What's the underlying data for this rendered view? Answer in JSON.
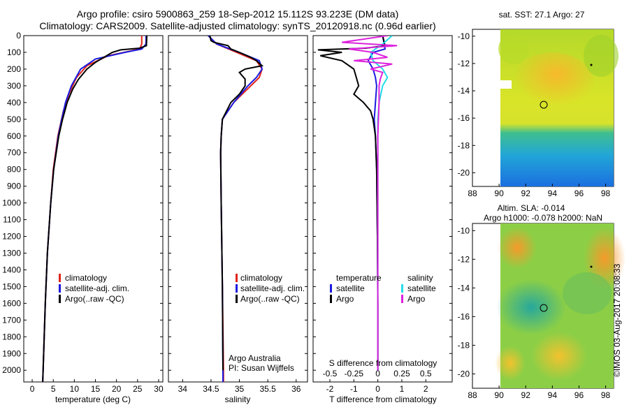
{
  "header": {
    "title_line1": "Argo profile: csiro 5900863_259 18-Sep-2012 15.112S 93.223E (DM data)",
    "title_line2": "Climatology: CARS2009. Satellite-adjusted climatology: synTS_20120918.nc (0.96d earlier)"
  },
  "colors": {
    "climatology": "#e0241b",
    "satellite": "#1a1adf",
    "argo": "#000000",
    "salinity_sat": "#22dde8",
    "salinity_argo": "#dd22dd"
  },
  "chart_data": [
    {
      "type": "line",
      "name": "temperature-profile",
      "xlabel": "temperature (deg C)",
      "xlim": [
        -2,
        31
      ],
      "ylim": [
        2070,
        0
      ],
      "xticks": [
        0,
        5,
        10,
        15,
        20,
        25,
        30
      ],
      "yticks": [
        0,
        100,
        200,
        300,
        400,
        500,
        600,
        700,
        800,
        900,
        1000,
        1100,
        1200,
        1300,
        1400,
        1500,
        1600,
        1700,
        1800,
        1900,
        2000
      ],
      "legend": [
        "climatology",
        "satellite-adj. clim.",
        "Argo(..raw -QC)"
      ],
      "series": [
        {
          "name": "climatology",
          "depth": [
            0,
            50,
            80,
            120,
            180,
            250,
            350,
            450,
            600,
            800,
            1000,
            1300,
            1600,
            2000,
            2070
          ],
          "values": [
            26,
            26,
            25.5,
            18,
            13,
            10.5,
            8.7,
            7.4,
            6.1,
            5.0,
            4.4,
            3.6,
            3.1,
            2.6,
            2.5
          ]
        },
        {
          "name": "satellite-adj. clim.",
          "depth": [
            0,
            50,
            80,
            100,
            140,
            200,
            300,
            400,
            500,
            600,
            800,
            1000,
            1300,
            1600,
            2000,
            2070
          ],
          "values": [
            27,
            27,
            26,
            22,
            15,
            11.5,
            9.3,
            7.9,
            7.0,
            6.2,
            5.1,
            4.4,
            3.6,
            3.1,
            2.6,
            2.5
          ]
        },
        {
          "name": "Argo",
          "depth": [
            0,
            60,
            75,
            85,
            100,
            130,
            160,
            200,
            260,
            320,
            400,
            500,
            600,
            800,
            1000,
            1300,
            1600,
            2000,
            2070
          ],
          "values": [
            27.2,
            27.1,
            25.5,
            21,
            19,
            17,
            15,
            13,
            11,
            9.6,
            8.3,
            7.2,
            6.3,
            5.1,
            4.4,
            3.6,
            3.1,
            2.6,
            2.5
          ]
        }
      ]
    },
    {
      "type": "line",
      "name": "salinity-profile",
      "xlabel": "salinity",
      "xlim": [
        33.75,
        36.2
      ],
      "ylim": [
        2070,
        0
      ],
      "xticks": [
        34,
        34.5,
        35,
        35.5,
        36
      ],
      "legend": [
        "climatology",
        "satellite-adj. clim.",
        "Argo(..raw -QC)"
      ],
      "annotation": [
        "Argo Australia",
        "PI: Susan Wijffels"
      ],
      "series": [
        {
          "name": "climatology",
          "depth": [
            0,
            50,
            100,
            150,
            200,
            250,
            300,
            400,
            500,
            600,
            700,
            1000,
            1500,
            2000,
            2070
          ],
          "values": [
            34.45,
            34.6,
            34.95,
            35.3,
            35.4,
            35.35,
            35.2,
            34.9,
            34.7,
            34.68,
            34.67,
            34.68,
            34.7,
            34.72,
            34.72
          ]
        },
        {
          "name": "satellite-adj. clim.",
          "depth": [
            0,
            50,
            100,
            150,
            200,
            250,
            300,
            400,
            500,
            600,
            700,
            1000,
            1500,
            2000,
            2070
          ],
          "values": [
            34.45,
            34.6,
            35.0,
            35.35,
            35.4,
            35.3,
            35.15,
            34.9,
            34.7,
            34.68,
            34.67,
            34.68,
            34.7,
            34.71,
            34.71
          ]
        },
        {
          "name": "Argo",
          "depth": [
            0,
            30,
            40,
            60,
            80,
            100,
            130,
            150,
            180,
            200,
            220,
            240,
            260,
            300,
            350,
            400,
            500,
            600,
            700,
            1000,
            1500,
            2000
          ],
          "values": [
            34.48,
            34.5,
            34.55,
            34.8,
            34.85,
            35.0,
            35.2,
            35.3,
            35.4,
            35.1,
            35.0,
            35.05,
            35.1,
            35.1,
            35.0,
            34.85,
            34.7,
            34.68,
            34.67,
            34.68,
            34.7,
            34.71
          ]
        }
      ]
    },
    {
      "type": "line",
      "name": "difference-profile",
      "xlabel": "T difference from climatology",
      "top_label": "S difference from climatology",
      "xlim": [
        -2.7,
        3.1
      ],
      "ylim": [
        2070,
        0
      ],
      "xticks": [
        -2,
        -1,
        0,
        1,
        2
      ],
      "s_ticks": [
        "-0.5",
        "-0.25",
        "0",
        "0.25",
        "0.5"
      ],
      "s_ticks_pos": [
        -2,
        -1,
        0,
        1,
        2
      ],
      "legend_temperature": "temperature",
      "legend_salinity": "salinity",
      "legend_items": [
        "satellite",
        "Argo",
        "satellite",
        "Argo"
      ],
      "series": [
        {
          "name": "T satellite",
          "depth": [
            0,
            80,
            100,
            150,
            200,
            250,
            300,
            400,
            500,
            600,
            800,
            1200,
            1600,
            2000
          ],
          "values": [
            0.2,
            0.3,
            -0.2,
            -0.4,
            -0.2,
            -0.1,
            -0.05,
            -0.1,
            -0.15,
            -0.1,
            -0.05,
            -0.02,
            0,
            0
          ]
        },
        {
          "name": "T Argo",
          "depth": [
            0,
            60,
            75,
            85,
            100,
            120,
            150,
            200,
            250,
            300,
            350,
            400,
            450,
            500,
            600,
            800,
            1200,
            1600,
            2000
          ],
          "values": [
            0.2,
            0.3,
            -0.5,
            -2.5,
            -1.5,
            -2.4,
            -1.5,
            -1.0,
            -0.9,
            -0.8,
            -1.0,
            -0.6,
            -0.3,
            -0.2,
            -0.1,
            -0.05,
            -0.02,
            0,
            0
          ]
        },
        {
          "name": "S satellite",
          "depth": [
            0,
            50,
            100,
            150,
            200,
            250,
            300,
            400,
            500,
            700,
            1000,
            1500,
            2000
          ],
          "values": [
            0.6,
            0.2,
            -0.3,
            -0.2,
            0.2,
            0.4,
            0.2,
            0.05,
            0,
            0,
            0,
            0,
            0
          ]
        },
        {
          "name": "S Argo",
          "depth": [
            0,
            40,
            60,
            80,
            100,
            130,
            150,
            170,
            200,
            220,
            260,
            300,
            400,
            600,
            1000,
            1500,
            2000
          ],
          "values": [
            0.4,
            -1.5,
            0.8,
            -1.2,
            -0.2,
            0.4,
            -1.0,
            0.6,
            -0.3,
            0.2,
            0.1,
            0.05,
            0.05,
            0,
            0,
            0,
            0
          ]
        }
      ]
    },
    {
      "type": "heatmap",
      "name": "sst-map",
      "title": "sat. SST: 27.1  Argo: 27",
      "xticks": [
        88,
        90,
        92,
        94,
        96,
        98
      ],
      "yticks": [
        -10,
        -12,
        -14,
        -16,
        -18,
        -20
      ],
      "xlim": [
        88,
        98.6
      ],
      "ylim": [
        -21,
        -9.5
      ],
      "argo_position": [
        93.223,
        -15.112
      ]
    },
    {
      "type": "heatmap",
      "name": "sla-map",
      "title_line1": "Altim. SLA: -0.014",
      "title_line2": "Argo h1000: -0.078 h2000: NaN",
      "xticks": [
        88,
        90,
        92,
        94,
        96,
        98
      ],
      "yticks": [
        -10,
        -12,
        -14,
        -16,
        -18,
        -20
      ],
      "xlim": [
        88,
        98.6
      ],
      "ylim": [
        -21,
        -9.5
      ],
      "argo_position": [
        93.223,
        -15.112
      ]
    }
  ],
  "footer": {
    "timestamp": "©IMOS 03-Aug-2017 20:08:33"
  }
}
